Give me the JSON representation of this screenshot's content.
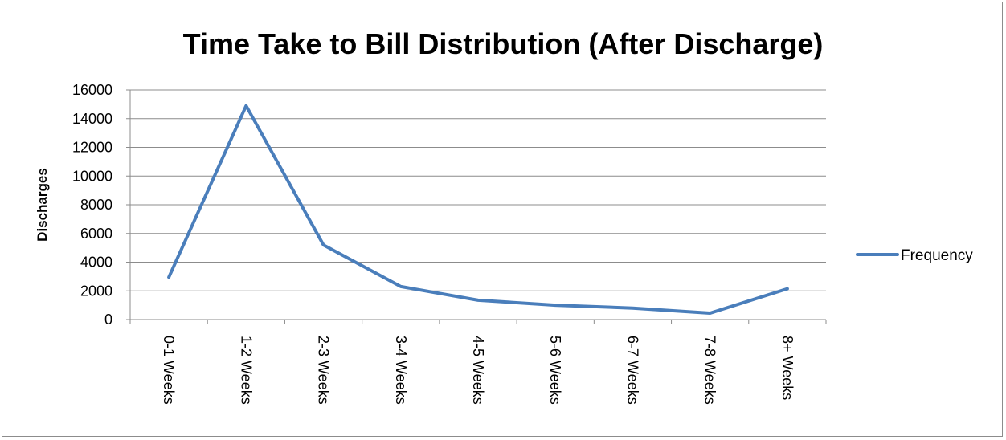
{
  "chart_data": {
    "type": "line",
    "title": "Time Take to Bill Distribution (After Discharge)",
    "xlabel": "",
    "ylabel": "Discharges",
    "categories": [
      "0-1 Weeks",
      "1-2 Weeks",
      "2-3 Weeks",
      "3-4 Weeks",
      "4-5 Weeks",
      "5-6 Weeks",
      "6-7 Weeks",
      "7-8 Weeks",
      "8+ Weeks"
    ],
    "series": [
      {
        "name": "Frequency",
        "color": "#4a7ebb",
        "values": [
          2950,
          14900,
          5200,
          2300,
          1350,
          1000,
          800,
          450,
          2150
        ]
      }
    ],
    "ylim": [
      0,
      16000
    ],
    "yticks": [
      "0",
      "2000",
      "4000",
      "6000",
      "8000",
      "10000",
      "12000",
      "14000",
      "16000"
    ],
    "grid": true,
    "legend": "right"
  }
}
